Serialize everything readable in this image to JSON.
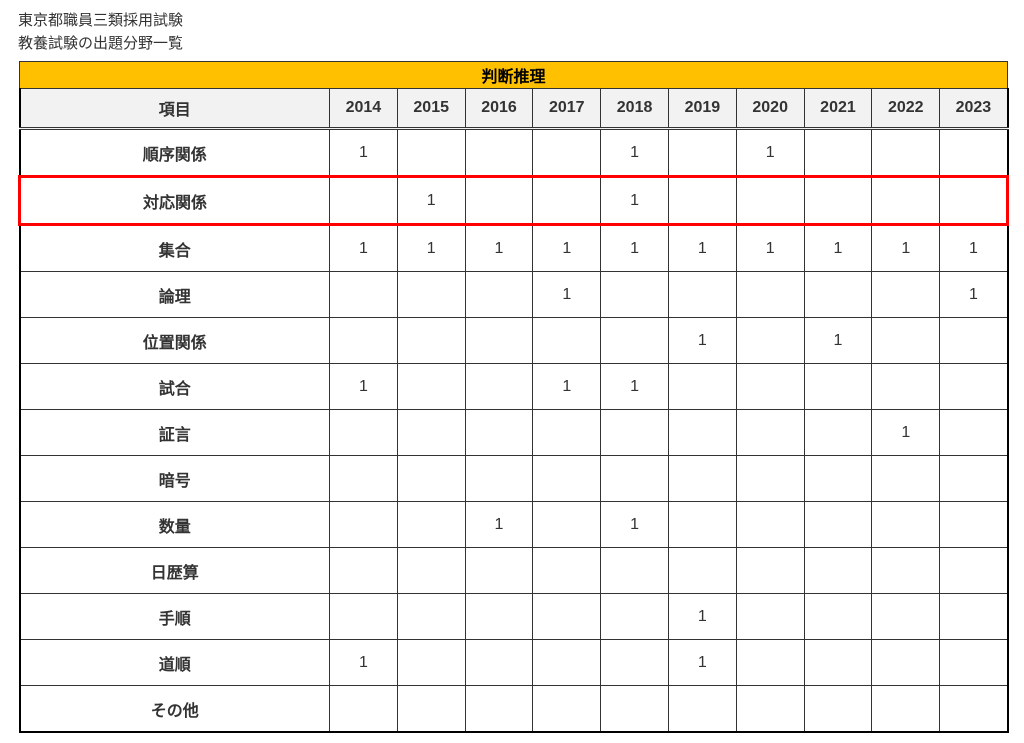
{
  "page": {
    "title_line1": "東京都職員三類採用試験",
    "title_line2": "教養試験の出題分野一覧"
  },
  "table": {
    "banner": "判断推理",
    "label_header": "項目",
    "years": [
      "2014",
      "2015",
      "2016",
      "2017",
      "2018",
      "2019",
      "2020",
      "2021",
      "2022",
      "2023"
    ],
    "highlight_row_index": 1,
    "highlight_color": "#ff0000",
    "banner_bg": "#ffc000",
    "header_bg": "#f2f2f2",
    "border_color": "#333333",
    "rows": [
      {
        "label": "順序関係",
        "cells": [
          "1",
          "",
          "",
          "",
          "1",
          "",
          "1",
          "",
          "",
          ""
        ]
      },
      {
        "label": "対応関係",
        "cells": [
          "",
          "1",
          "",
          "",
          "1",
          "",
          "",
          "",
          "",
          ""
        ]
      },
      {
        "label": "集合",
        "cells": [
          "1",
          "1",
          "1",
          "1",
          "1",
          "1",
          "1",
          "1",
          "1",
          "1"
        ]
      },
      {
        "label": "論理",
        "cells": [
          "",
          "",
          "",
          "1",
          "",
          "",
          "",
          "",
          "",
          "1"
        ]
      },
      {
        "label": "位置関係",
        "cells": [
          "",
          "",
          "",
          "",
          "",
          "1",
          "",
          "1",
          "",
          ""
        ]
      },
      {
        "label": "試合",
        "cells": [
          "1",
          "",
          "",
          "1",
          "1",
          "",
          "",
          "",
          "",
          ""
        ]
      },
      {
        "label": "証言",
        "cells": [
          "",
          "",
          "",
          "",
          "",
          "",
          "",
          "",
          "1",
          ""
        ]
      },
      {
        "label": "暗号",
        "cells": [
          "",
          "",
          "",
          "",
          "",
          "",
          "",
          "",
          "",
          ""
        ]
      },
      {
        "label": "数量",
        "cells": [
          "",
          "",
          "1",
          "",
          "1",
          "",
          "",
          "",
          "",
          ""
        ]
      },
      {
        "label": "日歴算",
        "cells": [
          "",
          "",
          "",
          "",
          "",
          "",
          "",
          "",
          "",
          ""
        ]
      },
      {
        "label": "手順",
        "cells": [
          "",
          "",
          "",
          "",
          "",
          "1",
          "",
          "",
          "",
          ""
        ]
      },
      {
        "label": "道順",
        "cells": [
          "1",
          "",
          "",
          "",
          "",
          "1",
          "",
          "",
          "",
          ""
        ]
      },
      {
        "label": "その他",
        "cells": [
          "",
          "",
          "",
          "",
          "",
          "",
          "",
          "",
          "",
          ""
        ]
      }
    ]
  }
}
